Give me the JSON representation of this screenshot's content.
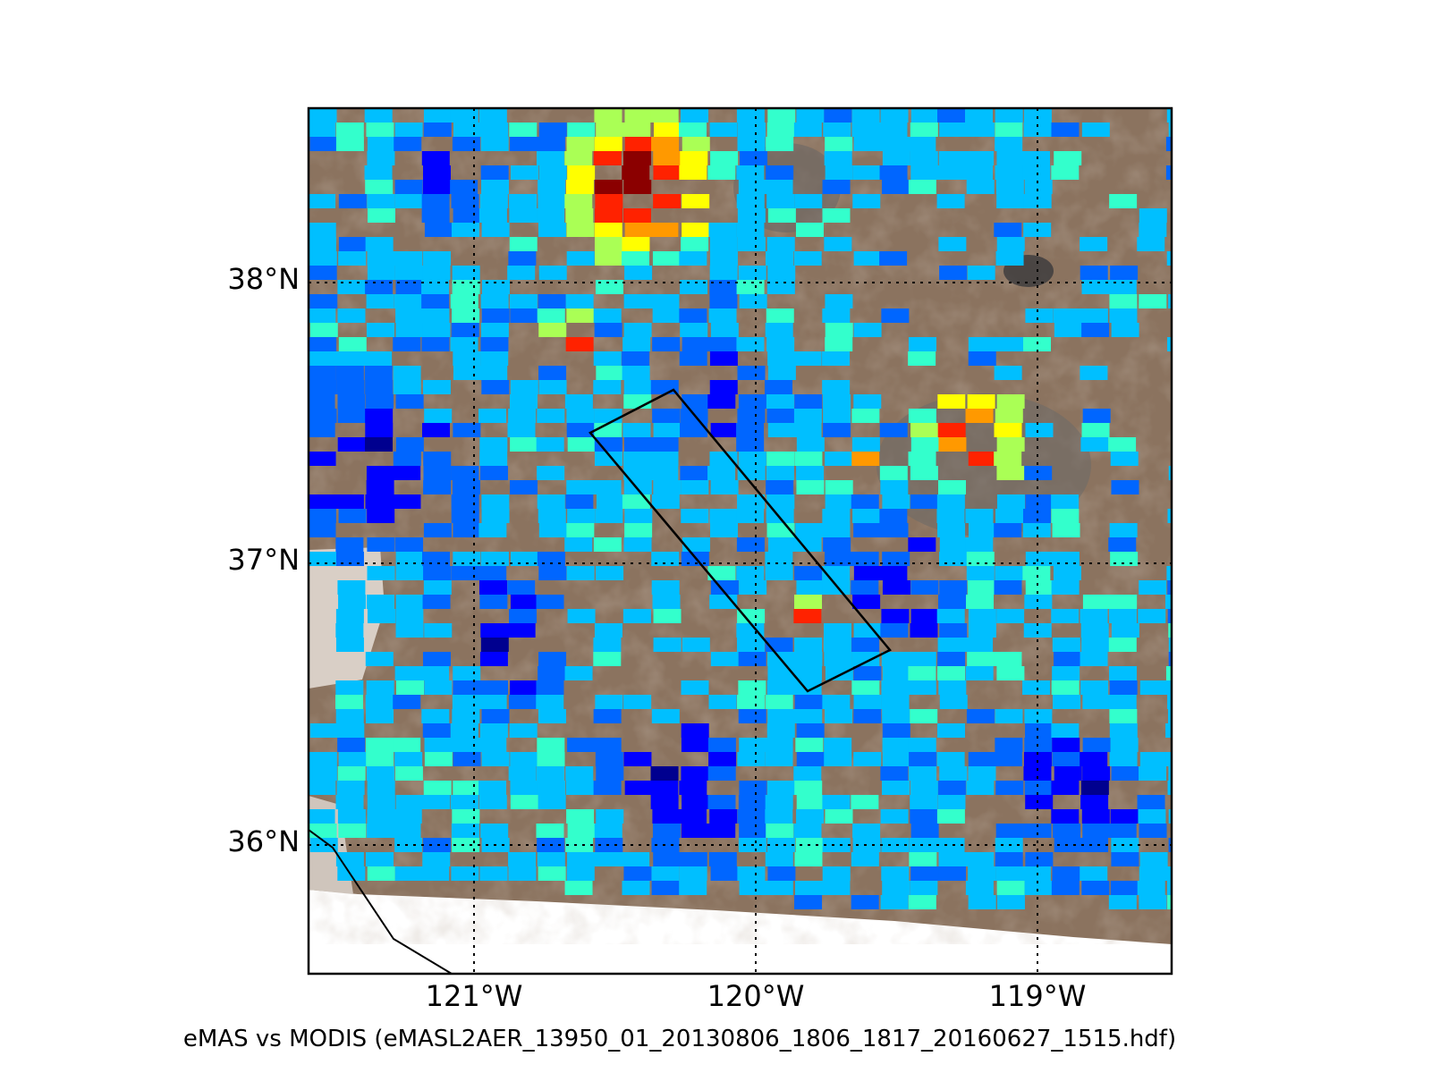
{
  "map": {
    "lat_labels": [
      "38°N",
      "37°N",
      "36°N"
    ],
    "lon_labels": [
      "121°W",
      "120°W",
      "119°W"
    ],
    "caption": "eMAS vs MODIS (eMASL2AER_13950_01_20130806_1806_1817_20160627_1515.hdf)",
    "colors": {
      "background_land": "#8b735f",
      "frame": "#000000",
      "gridline": "#000000",
      "colormap": [
        "#00008f",
        "#0000ff",
        "#0066ff",
        "#00bfff",
        "#33ffcc",
        "#aaff55",
        "#ffff00",
        "#ff9900",
        "#ff2200",
        "#8b0000"
      ]
    }
  }
}
